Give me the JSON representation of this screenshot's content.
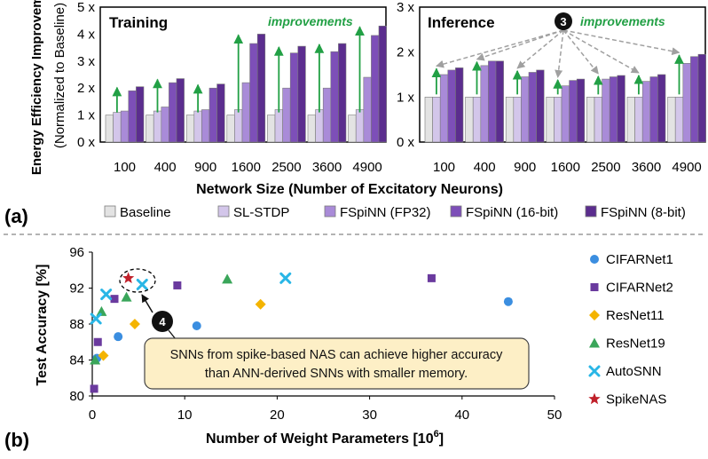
{
  "chart_data": [
    {
      "type": "bar",
      "panel": "(a)",
      "title": "Training",
      "annotation": "improvements",
      "ylabel": "Energy Efficiency Improvement",
      "ylabel2": "(Normalized to Baseline)",
      "xlabel": "Network Size (Number of Excitatory Neurons)",
      "ylim": [
        0,
        5
      ],
      "yticks": [
        "0 x",
        "1 x",
        "2 x",
        "3 x",
        "4 x",
        "5 x"
      ],
      "categories": [
        "100",
        "400",
        "900",
        "1600",
        "2500",
        "3600",
        "4900"
      ],
      "series": [
        {
          "name": "Baseline",
          "color": "#e3e3e3",
          "values": [
            1,
            1,
            1,
            1,
            1,
            1,
            1
          ]
        },
        {
          "name": "SL-STDP",
          "color": "#d3c6ea",
          "values": [
            1.1,
            1.15,
            1.15,
            1.2,
            1.2,
            1.2,
            1.2
          ]
        },
        {
          "name": "FSpiNN (FP32)",
          "color": "#a98bd8",
          "values": [
            1.15,
            1.3,
            1.2,
            2.2,
            2.0,
            2.0,
            2.4
          ]
        },
        {
          "name": "FSpiNN (16-bit)",
          "color": "#7d4fb8",
          "values": [
            1.9,
            2.2,
            2.0,
            3.65,
            3.3,
            3.35,
            3.95
          ]
        },
        {
          "name": "FSpiNN (8-bit)",
          "color": "#5b2d8e",
          "values": [
            2.05,
            2.35,
            2.15,
            4.0,
            3.55,
            3.65,
            4.3
          ]
        }
      ]
    },
    {
      "type": "bar",
      "title": "Inference",
      "annotation": "improvements",
      "badge": "3",
      "ylim": [
        0,
        3
      ],
      "yticks": [
        "0 x",
        "1 x",
        "2 x",
        "3 x"
      ],
      "categories": [
        "100",
        "400",
        "900",
        "1600",
        "2500",
        "3600",
        "4900"
      ],
      "series": [
        {
          "name": "Baseline",
          "values": [
            1,
            1,
            1,
            1,
            1,
            1,
            1
          ]
        },
        {
          "name": "SL-STDP",
          "values": [
            1.0,
            1.0,
            1.0,
            1.0,
            1.0,
            1.0,
            1.0
          ]
        },
        {
          "name": "FSpiNN (FP32)",
          "values": [
            1.5,
            1.7,
            1.45,
            1.25,
            1.4,
            1.35,
            1.75
          ]
        },
        {
          "name": "FSpiNN (16-bit)",
          "values": [
            1.6,
            1.8,
            1.55,
            1.37,
            1.45,
            1.45,
            1.9
          ]
        },
        {
          "name": "FSpiNN (8-bit)",
          "values": [
            1.65,
            1.8,
            1.6,
            1.4,
            1.48,
            1.5,
            1.95
          ]
        }
      ]
    },
    {
      "type": "scatter",
      "panel": "(b)",
      "xlabel": "Number of Weight Parameters [10",
      "xlabel_sup": "6",
      "xlabel_end": "]",
      "ylabel": "Test Accuracy [%]",
      "xlim": [
        0,
        50
      ],
      "ylim": [
        80,
        96
      ],
      "xticks": [
        "0",
        "10",
        "20",
        "30",
        "40",
        "50"
      ],
      "yticks": [
        "80",
        "84",
        "88",
        "92",
        "96"
      ],
      "badge": "4",
      "callout": [
        "SNNs from spike-based NAS can achieve higher accuracy",
        "than ANN-derived SNNs with smaller memory."
      ],
      "series": [
        {
          "name": "CIFARNet1",
          "marker": "circle",
          "color": "#3b8ee0",
          "points": [
            [
              0.5,
              84.2
            ],
            [
              2.8,
              86.6
            ],
            [
              11.3,
              87.8
            ],
            [
              45.0,
              90.5
            ]
          ]
        },
        {
          "name": "CIFARNet2",
          "marker": "square",
          "color": "#6a3a9e",
          "points": [
            [
              0.2,
              80.8
            ],
            [
              0.6,
              86.0
            ],
            [
              2.4,
              90.8
            ],
            [
              9.2,
              92.3
            ],
            [
              36.7,
              93.1
            ]
          ]
        },
        {
          "name": "ResNet11",
          "marker": "diamond",
          "color": "#f4b400",
          "points": [
            [
              1.2,
              84.5
            ],
            [
              4.6,
              88.0
            ],
            [
              18.2,
              90.2
            ]
          ]
        },
        {
          "name": "ResNet19",
          "marker": "triangle",
          "color": "#3aa65a",
          "points": [
            [
              0.3,
              84.0
            ],
            [
              1.0,
              89.4
            ],
            [
              3.7,
              91.0
            ],
            [
              14.6,
              93.0
            ]
          ]
        },
        {
          "name": "AutoSNN",
          "marker": "x",
          "color": "#29b6e6",
          "points": [
            [
              0.4,
              88.6
            ],
            [
              1.5,
              91.3
            ],
            [
              5.4,
              92.4
            ],
            [
              20.9,
              93.1
            ]
          ]
        },
        {
          "name": "SpikeNAS",
          "marker": "star",
          "color": "#c0202a",
          "points": [
            [
              3.9,
              93.1
            ]
          ]
        }
      ]
    }
  ]
}
